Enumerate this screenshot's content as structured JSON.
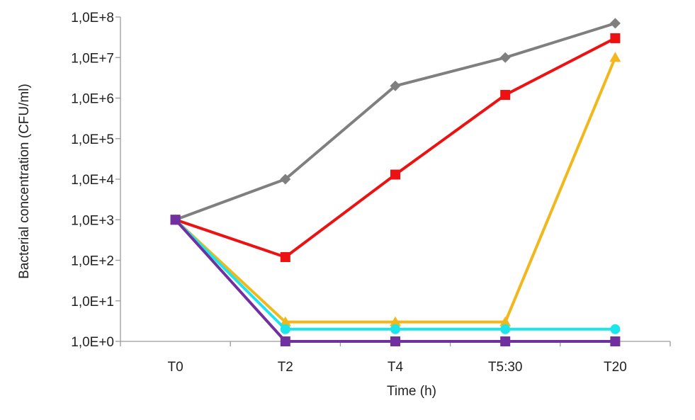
{
  "chart_data": {
    "type": "line",
    "title": "",
    "xlabel": "Time (h)",
    "ylabel": "Bacterial concentration (CFU/ml)",
    "yscale": "log10",
    "ylim": [
      1,
      100000000
    ],
    "grid": false,
    "categories": [
      "T0",
      "T2",
      "T4",
      "T5:30",
      "T20"
    ],
    "ytick_values": [
      1,
      10,
      100,
      1000,
      10000,
      100000,
      1000000,
      10000000,
      100000000
    ],
    "ytick_labels": [
      "1,0E+0",
      "1,0E+1",
      "1,0E+2",
      "1,0E+3",
      "1,0E+4",
      "1,0E+5",
      "1,0E+6",
      "1,0E+7",
      "1,0E+8"
    ],
    "series": [
      {
        "name": "series-gray",
        "color": "#7f7f7f",
        "marker": "diamond",
        "values": [
          1000,
          10000,
          2000000,
          10000000,
          70000000
        ]
      },
      {
        "name": "series-red",
        "color": "#ee1111",
        "marker": "square",
        "values": [
          1000,
          120,
          13000,
          1200000,
          30000000
        ]
      },
      {
        "name": "series-yellow",
        "color": "#f2b71a",
        "marker": "triangle",
        "values": [
          1000,
          3,
          3,
          3,
          10000000
        ]
      },
      {
        "name": "series-cyan",
        "color": "#1ce5ec",
        "marker": "circle",
        "values": [
          1000,
          2,
          2,
          2,
          2
        ]
      },
      {
        "name": "series-purple",
        "color": "#7030a0",
        "marker": "square",
        "values": [
          1000,
          1,
          1,
          1,
          1
        ]
      }
    ]
  }
}
